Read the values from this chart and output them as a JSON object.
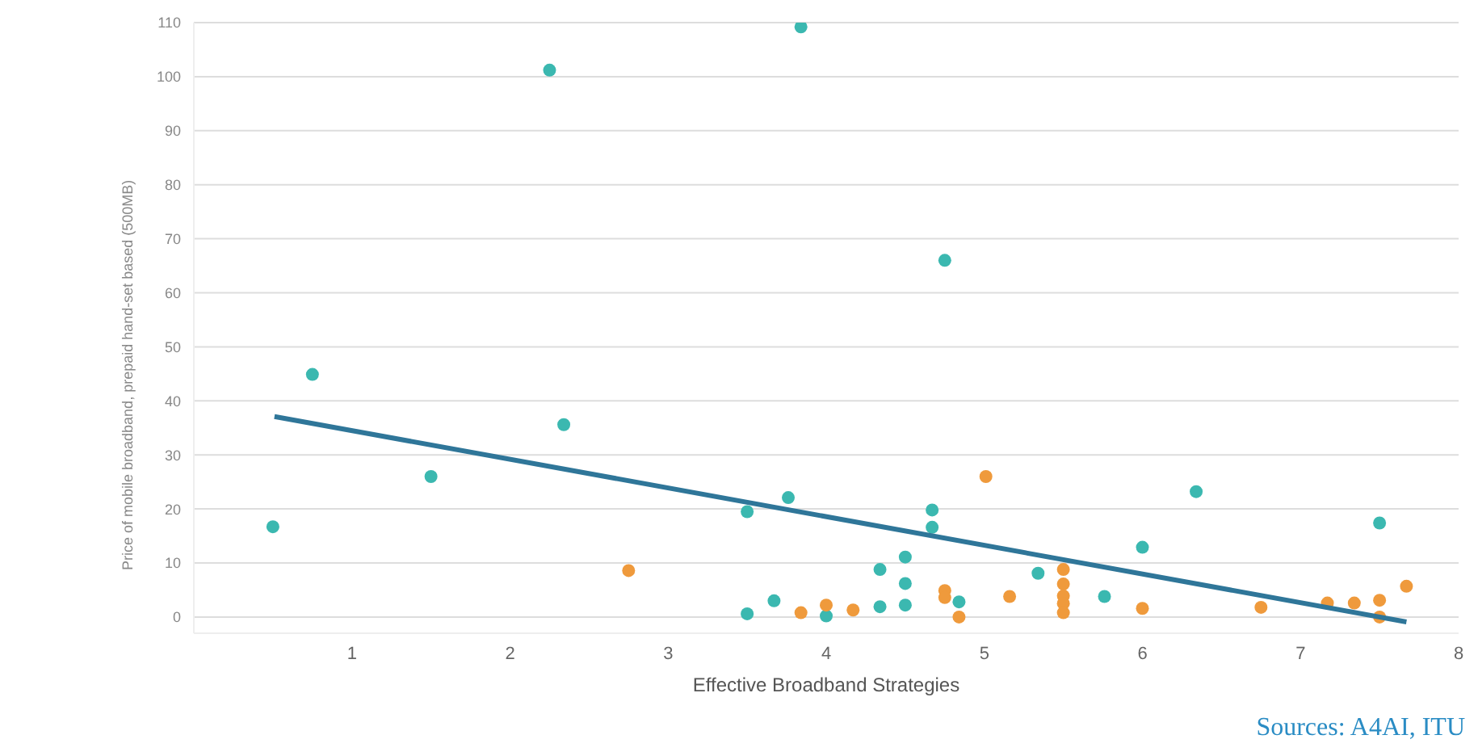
{
  "chart_data": {
    "type": "scatter",
    "xlabel": "Effective Broadband Strategies",
    "ylabel": "Price of mobile broadband, prepaid hand-set based (500MB)",
    "xlim": [
      0,
      8
    ],
    "xticks": [
      1,
      2,
      3,
      4,
      5,
      6,
      7,
      8
    ],
    "ylim": [
      -3,
      110
    ],
    "yticks": [
      0,
      10,
      20,
      30,
      40,
      50,
      60,
      70,
      80,
      90,
      100,
      110
    ],
    "grid": "y",
    "marker": "circle",
    "annotations": [
      "Sources: A4AI, ITU"
    ],
    "series": [
      {
        "color": "#3bb8b0",
        "x": [
          0.5,
          0.75,
          1.5,
          2.25,
          2.34,
          3.5,
          3.76,
          3.84,
          4.75,
          3.5,
          3.67,
          4.0,
          4.34,
          4.34,
          4.5,
          4.5,
          4.5,
          4.67,
          4.67,
          4.84,
          5.34,
          5.76,
          6.0,
          6.34,
          7.5
        ],
        "values": [
          16.7,
          44.9,
          26,
          101.2,
          35.6,
          19.5,
          22.1,
          109.2,
          66,
          0.6,
          3,
          0.2,
          8.8,
          1.9,
          11.1,
          6.2,
          2.2,
          19.8,
          16.6,
          2.8,
          8.1,
          3.8,
          12.9,
          23.2,
          17.4
        ]
      },
      {
        "color": "#ef9a3c",
        "x": [
          2.75,
          3.84,
          4.0,
          4.17,
          4.75,
          4.75,
          4.84,
          5.01,
          5.16,
          5.5,
          5.5,
          5.5,
          5.5,
          5.5,
          6.0,
          6.75,
          7.17,
          7.34,
          7.5,
          7.5,
          7.67
        ],
        "values": [
          8.6,
          0.8,
          2.2,
          1.3,
          4.9,
          3.6,
          0,
          26,
          3.8,
          8.8,
          6.1,
          3.9,
          2.5,
          0.8,
          1.6,
          1.8,
          2.6,
          2.6,
          3.1,
          0,
          5.7
        ]
      },
      {
        "type": "line",
        "marker": "none",
        "color": "#2f7699",
        "x": [
          0.51,
          7.67
        ],
        "values": [
          37.1,
          -0.9
        ]
      }
    ]
  }
}
